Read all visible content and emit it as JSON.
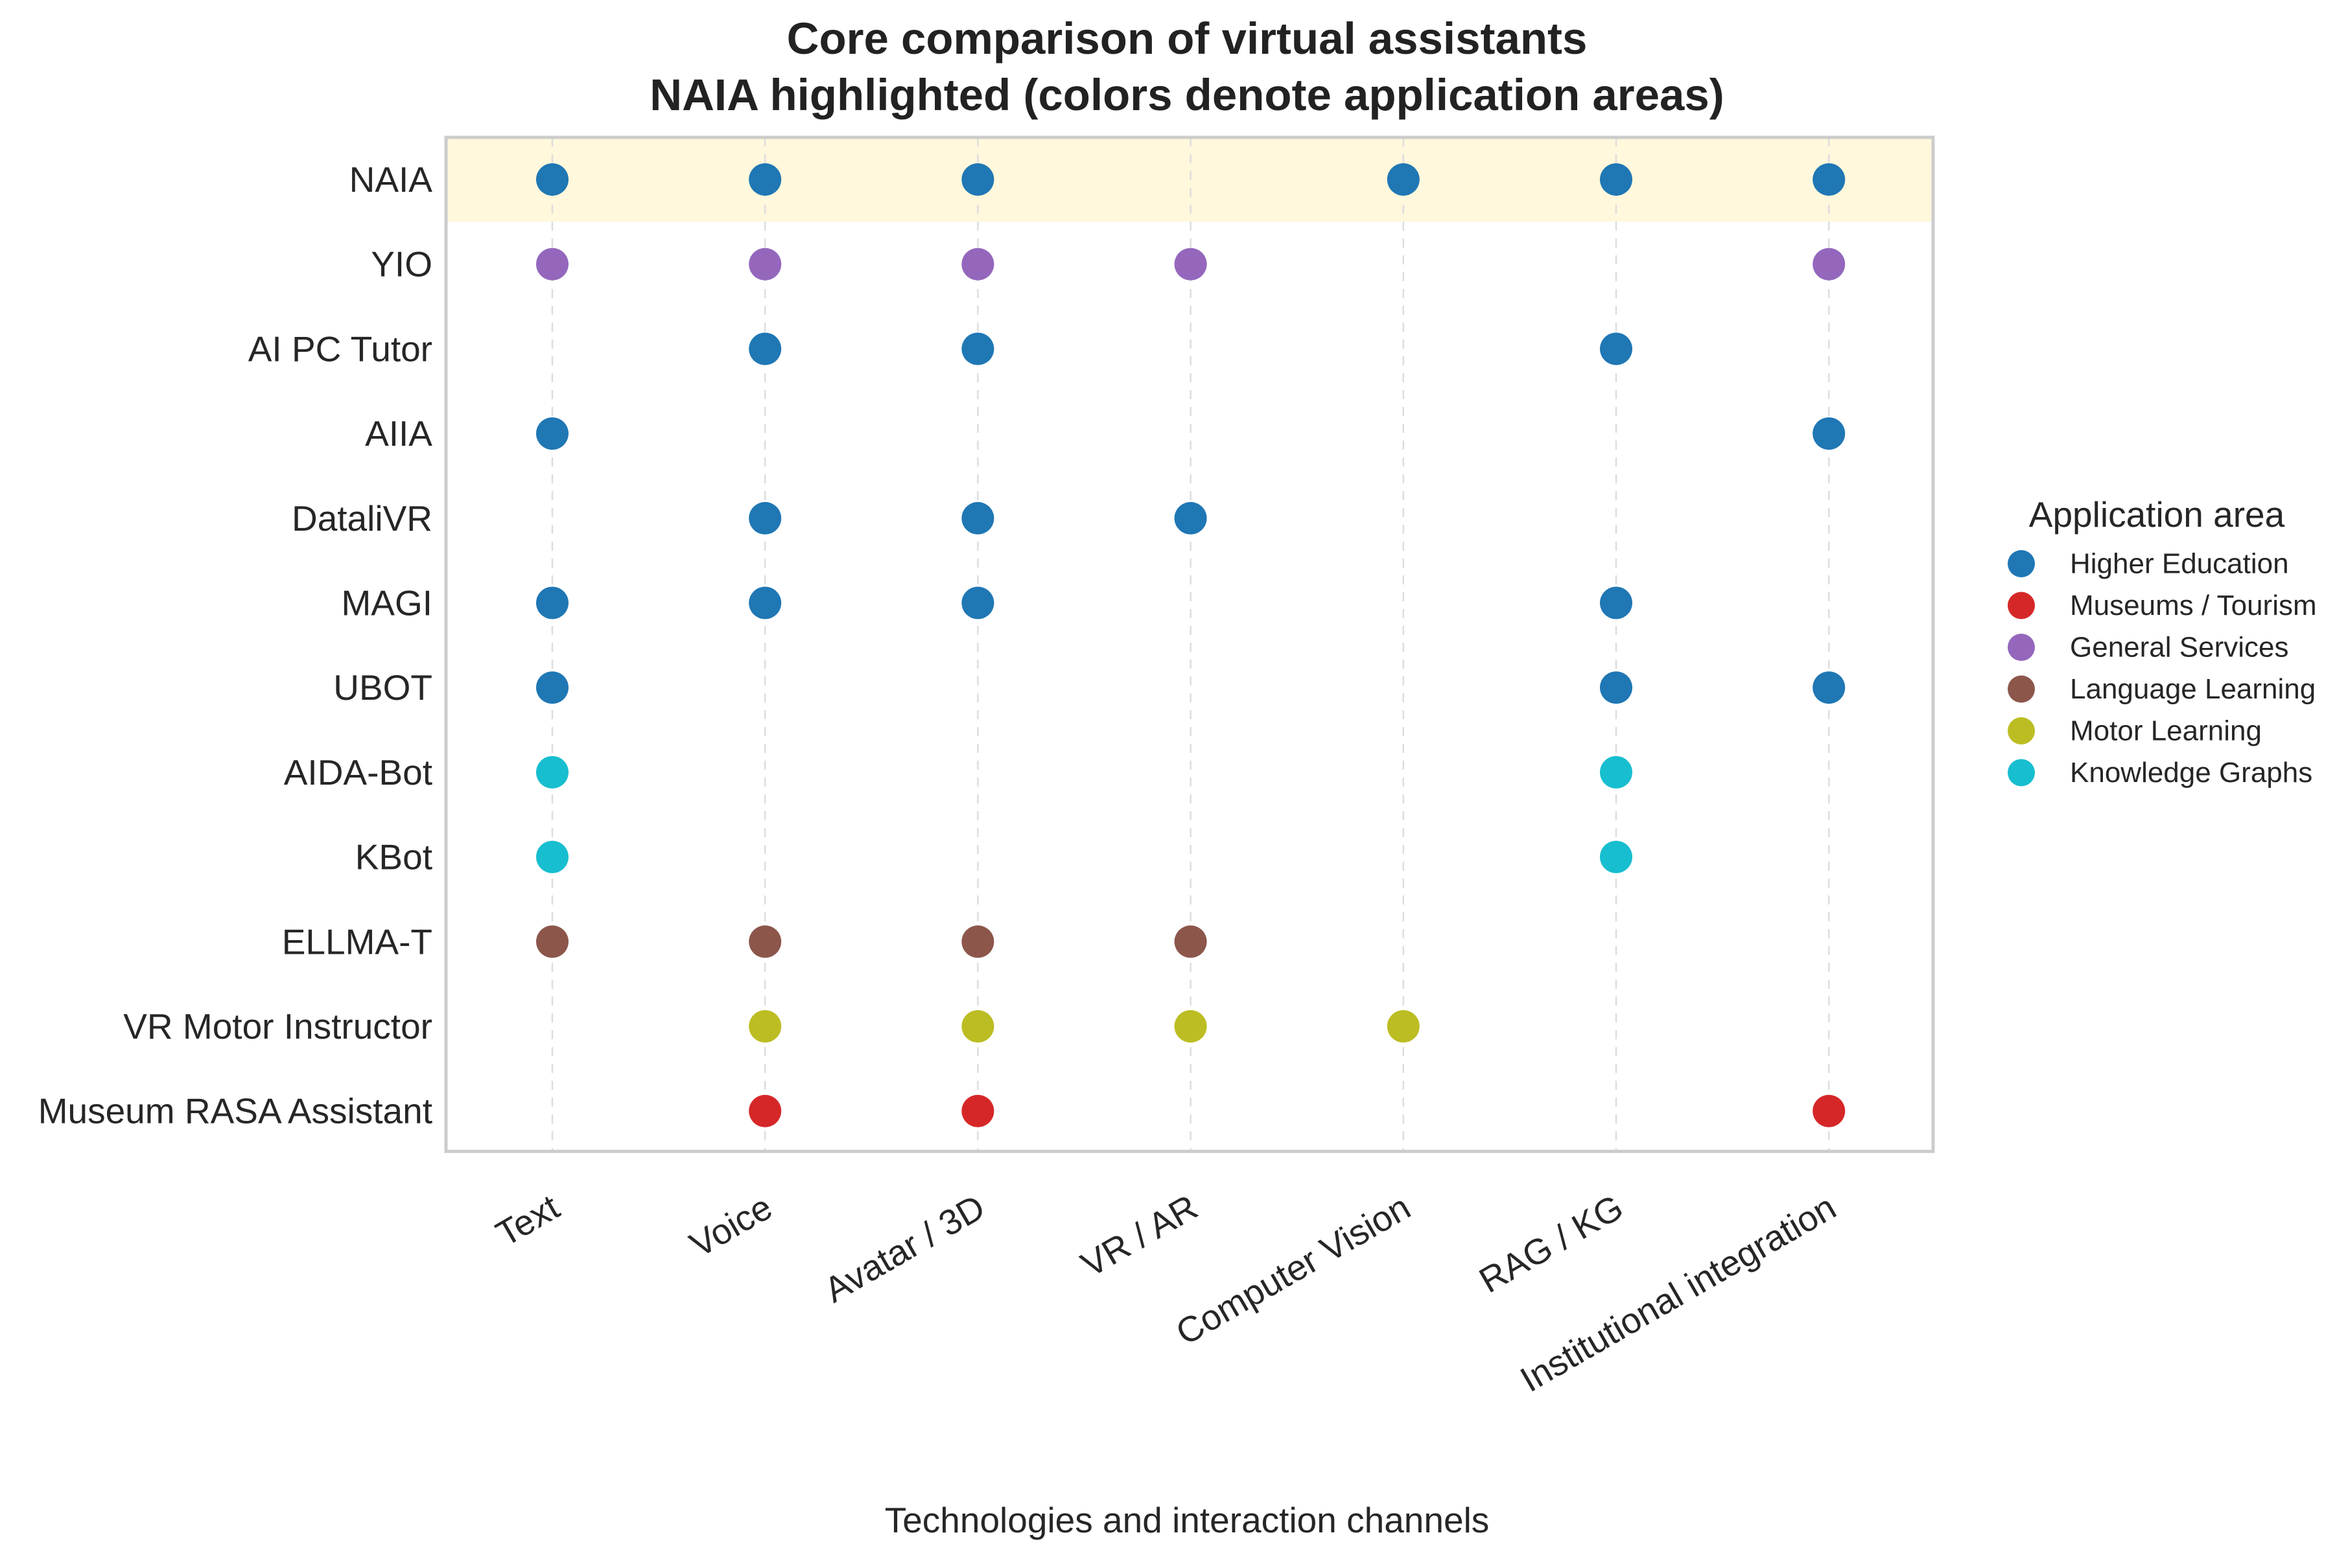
{
  "chart_data": {
    "type": "scatter",
    "title_lines": [
      "Core comparison of virtual assistants",
      "NAIA highlighted (colors denote application areas)"
    ],
    "xlabel": "Technologies and interaction channels",
    "ylabel": "",
    "x_categories": [
      "Text",
      "Voice",
      "Avatar / 3D",
      "VR / AR",
      "Computer Vision",
      "RAG / KG",
      "Institutional integration"
    ],
    "y_categories": [
      "NAIA",
      "YIO",
      "AI PC Tutor",
      "AIIA",
      "DataliVR",
      "MAGI",
      "UBOT",
      "AIDA-Bot",
      "KBot",
      "ELLMA-T",
      "VR Motor Instructor",
      "Museum RASA Assistant"
    ],
    "highlighted": "NAIA",
    "highlight_color": "#fff8dc",
    "grid": "vertical dashed",
    "legend": {
      "title": "Application area",
      "placement": "right",
      "entries": [
        {
          "label": "Higher Education",
          "color": "#1f77b4"
        },
        {
          "label": "Museums / Tourism",
          "color": "#d62728"
        },
        {
          "label": "General Services",
          "color": "#9467bd"
        },
        {
          "label": "Language Learning",
          "color": "#8c564b"
        },
        {
          "label": "Motor Learning",
          "color": "#bcbd22"
        },
        {
          "label": "Knowledge Graphs",
          "color": "#17becf"
        }
      ]
    },
    "assistants": [
      {
        "name": "NAIA",
        "area": "Higher Education",
        "features": [
          "Text",
          "Voice",
          "Avatar / 3D",
          "Computer Vision",
          "RAG / KG",
          "Institutional integration"
        ]
      },
      {
        "name": "YIO",
        "area": "General Services",
        "features": [
          "Text",
          "Voice",
          "Avatar / 3D",
          "VR / AR",
          "Institutional integration"
        ]
      },
      {
        "name": "AI PC Tutor",
        "area": "Higher Education",
        "features": [
          "Voice",
          "Avatar / 3D",
          "RAG / KG"
        ]
      },
      {
        "name": "AIIA",
        "area": "Higher Education",
        "features": [
          "Text",
          "Institutional integration"
        ]
      },
      {
        "name": "DataliVR",
        "area": "Higher Education",
        "features": [
          "Voice",
          "Avatar / 3D",
          "VR / AR"
        ]
      },
      {
        "name": "MAGI",
        "area": "Higher Education",
        "features": [
          "Text",
          "Voice",
          "Avatar / 3D",
          "RAG / KG"
        ]
      },
      {
        "name": "UBOT",
        "area": "Higher Education",
        "features": [
          "Text",
          "RAG / KG",
          "Institutional integration"
        ]
      },
      {
        "name": "AIDA-Bot",
        "area": "Knowledge Graphs",
        "features": [
          "Text",
          "RAG / KG"
        ]
      },
      {
        "name": "KBot",
        "area": "Knowledge Graphs",
        "features": [
          "Text",
          "RAG / KG"
        ]
      },
      {
        "name": "ELLMA-T",
        "area": "Language Learning",
        "features": [
          "Text",
          "Voice",
          "Avatar / 3D",
          "VR / AR"
        ]
      },
      {
        "name": "VR Motor Instructor",
        "area": "Motor Learning",
        "features": [
          "Voice",
          "Avatar / 3D",
          "VR / AR",
          "Computer Vision"
        ]
      },
      {
        "name": "Museum RASA Assistant",
        "area": "Museums / Tourism",
        "features": [
          "Voice",
          "Avatar / 3D",
          "Institutional integration"
        ]
      }
    ]
  }
}
